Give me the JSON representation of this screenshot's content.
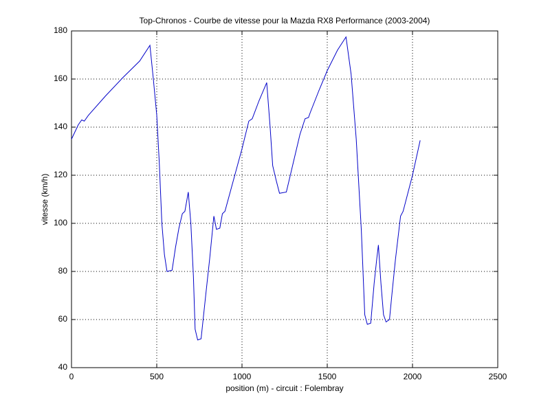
{
  "chart_data": {
    "type": "line",
    "title": "Top-Chronos - Courbe de vitesse pour la Mazda RX8 Performance (2003-2004)",
    "x_label": "position (m) - circuit : Folembray",
    "y_label": "vitesse (km/h)",
    "x": [
      0,
      20,
      40,
      60,
      75,
      100,
      200,
      300,
      400,
      460,
      480,
      500,
      515,
      530,
      545,
      560,
      590,
      610,
      630,
      650,
      665,
      685,
      700,
      715,
      725,
      740,
      760,
      775,
      790,
      810,
      835,
      850,
      870,
      885,
      900,
      950,
      1000,
      1040,
      1060,
      1100,
      1145,
      1165,
      1180,
      1200,
      1220,
      1260,
      1300,
      1340,
      1370,
      1390,
      1400,
      1450,
      1500,
      1560,
      1610,
      1640,
      1670,
      1700,
      1720,
      1735,
      1755,
      1775,
      1790,
      1800,
      1815,
      1830,
      1845,
      1865,
      1880,
      1900,
      1930,
      1945,
      2000,
      2045
    ],
    "series": [
      {
        "name": "vitesse",
        "color": "#0000c8",
        "values": [
          135,
          138,
          141,
          143,
          142.5,
          145,
          153,
          160.5,
          167.5,
          174,
          160,
          145,
          125,
          100,
          87,
          80,
          80.5,
          90,
          98,
          104,
          105,
          113,
          100,
          78,
          56,
          51.5,
          52,
          62,
          72,
          85,
          103,
          97.5,
          98,
          104,
          105,
          118,
          131,
          142.5,
          143.5,
          151,
          158.5,
          140,
          124,
          118,
          112.5,
          113,
          125,
          137,
          143.5,
          144,
          146,
          155,
          163.5,
          172,
          177.5,
          162,
          135,
          97,
          62,
          58,
          58.5,
          75,
          85,
          91,
          75,
          62,
          59,
          60,
          71,
          85,
          103,
          105,
          120,
          134.5
        ]
      }
    ],
    "xlim": [
      0,
      2500
    ],
    "xticks": [
      0,
      500,
      1000,
      1500,
      2000,
      2500
    ],
    "ylim": [
      40,
      180
    ],
    "yticks": [
      40,
      60,
      80,
      100,
      120,
      140,
      160,
      180
    ],
    "grid": true
  }
}
